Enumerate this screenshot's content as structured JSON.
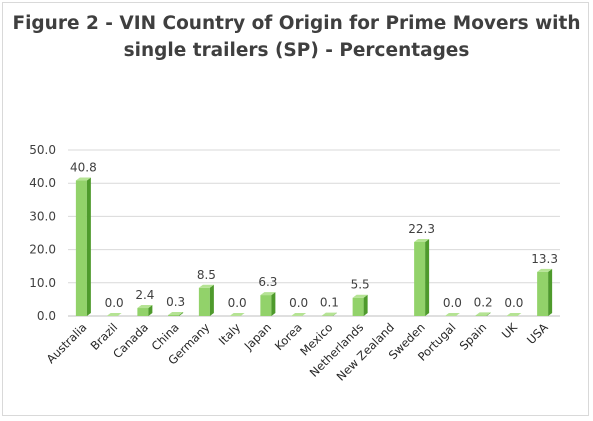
{
  "chart_data": {
    "type": "bar",
    "title_line1": "Figure 2 - VIN Country of Origin for Prime Movers with",
    "title_line2": "single trailers (SP) - Percentages",
    "categories": [
      "Australia",
      "Brazil",
      "Canada",
      "China",
      "Germany",
      "Italy",
      "Japan",
      "Korea",
      "Mexico",
      "Netherlands",
      "New Zealand",
      "Sweden",
      "Portugal",
      "Spain",
      "UK",
      "USA"
    ],
    "values": [
      40.8,
      0.0,
      2.4,
      0.3,
      8.5,
      0.0,
      6.3,
      0.0,
      0.1,
      5.5,
      null,
      22.3,
      0.0,
      0.2,
      0.0,
      13.3
    ],
    "value_labels": [
      "40.8",
      "0.0",
      "2.4",
      "0.3",
      "8.5",
      "0.0",
      "6.3",
      "0.0",
      "0.1",
      "5.5",
      "",
      "22.3",
      "0.0",
      "0.2",
      "0.0",
      "13.3"
    ],
    "y_ticks": [
      "0.0",
      "10.0",
      "20.0",
      "30.0",
      "40.0",
      "50.0"
    ],
    "ylim": [
      0,
      50
    ],
    "grid": true,
    "legend": "none",
    "colors": {
      "bar_front": "#92d26a",
      "bar_side": "#4e9a2c",
      "bar_top": "#b5e394",
      "grid": "#d9d9d9",
      "axis": "#bfbfbf",
      "title": "#3f3f3f"
    }
  }
}
